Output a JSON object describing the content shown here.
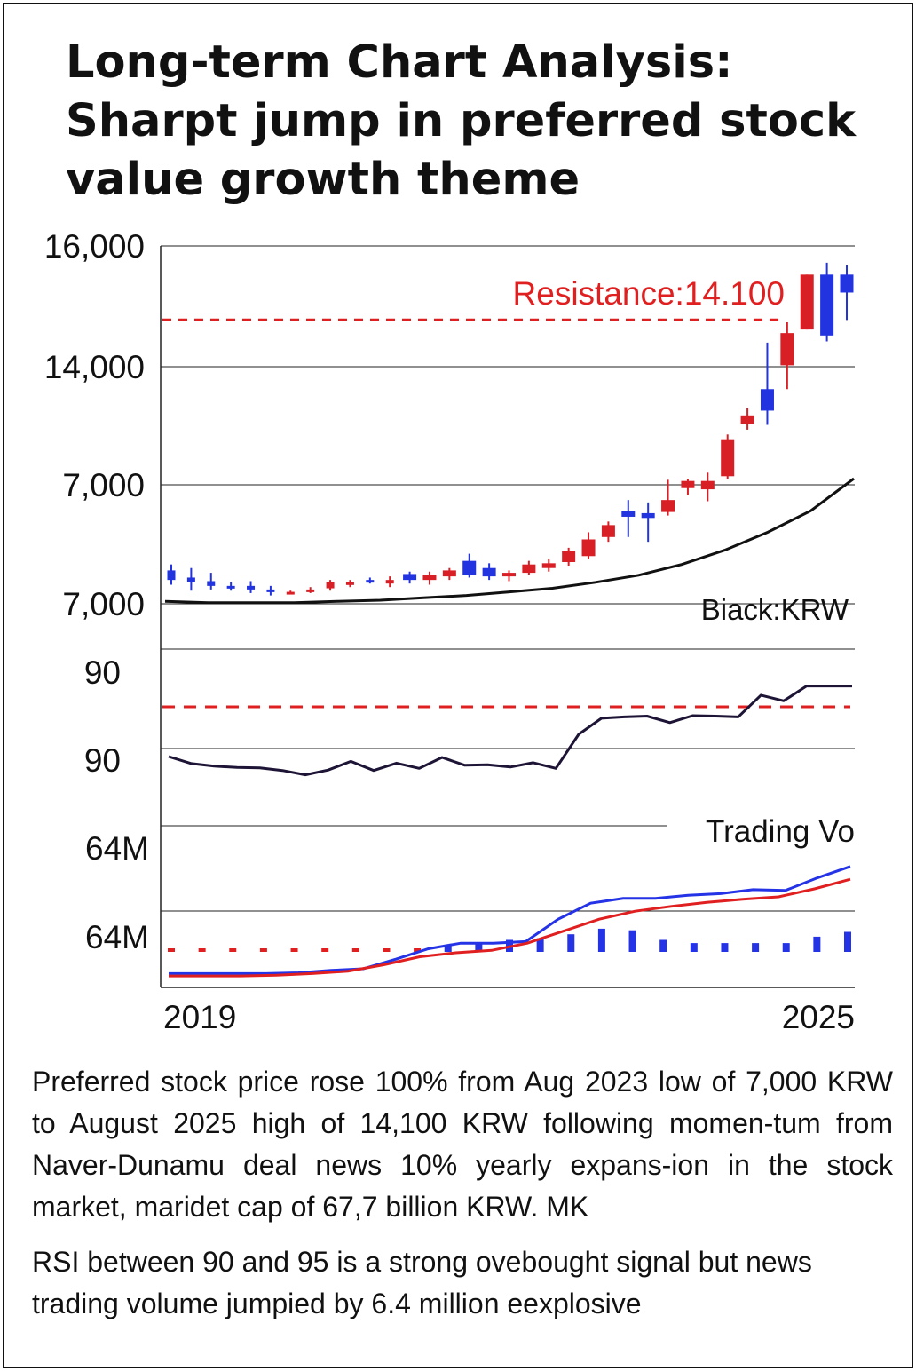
{
  "title": [
    "Long-term Chart Analysis:",
    "Sharpt jump in preferred stock",
    "value growth theme"
  ],
  "colors": {
    "up": "#d91f26",
    "down": "#2233e0",
    "line": "#111111",
    "rsi": "#1e1536",
    "grid": "#222222",
    "red": "#e02020",
    "blue": "#2533e6"
  },
  "chart_data": [
    {
      "type": "candlestick",
      "title": "Price",
      "y_tick_labels": [
        "16,000",
        "14,000",
        "7,000",
        "7,000"
      ],
      "x_labels": [
        "2019",
        "2025"
      ],
      "annotation": "Resistance:14.100",
      "resistance_level": 14.1,
      "legend_label": "Biack:KRW",
      "scale_note": "y values expressed in chart index units: 0 = lowest gridline, 3 = top gridline",
      "candles": [
        {
          "o": 0.28,
          "c": 0.2,
          "h": 0.33,
          "l": 0.16,
          "color": "down"
        },
        {
          "o": 0.22,
          "c": 0.18,
          "h": 0.3,
          "l": 0.11,
          "color": "down"
        },
        {
          "o": 0.19,
          "c": 0.15,
          "h": 0.26,
          "l": 0.12,
          "color": "down"
        },
        {
          "o": 0.15,
          "c": 0.13,
          "h": 0.18,
          "l": 0.11,
          "color": "down"
        },
        {
          "o": 0.15,
          "c": 0.12,
          "h": 0.19,
          "l": 0.09,
          "color": "down"
        },
        {
          "o": 0.12,
          "c": 0.11,
          "h": 0.15,
          "l": 0.07,
          "color": "down"
        },
        {
          "o": 0.09,
          "c": 0.1,
          "h": 0.11,
          "l": 0.08,
          "color": "up"
        },
        {
          "o": 0.11,
          "c": 0.12,
          "h": 0.14,
          "l": 0.09,
          "color": "up"
        },
        {
          "o": 0.13,
          "c": 0.18,
          "h": 0.2,
          "l": 0.11,
          "color": "up"
        },
        {
          "o": 0.16,
          "c": 0.18,
          "h": 0.2,
          "l": 0.14,
          "color": "up"
        },
        {
          "o": 0.2,
          "c": 0.18,
          "h": 0.22,
          "l": 0.17,
          "color": "down"
        },
        {
          "o": 0.17,
          "c": 0.2,
          "h": 0.23,
          "l": 0.14,
          "color": "up"
        },
        {
          "o": 0.25,
          "c": 0.2,
          "h": 0.27,
          "l": 0.17,
          "color": "down"
        },
        {
          "o": 0.2,
          "c": 0.24,
          "h": 0.27,
          "l": 0.16,
          "color": "up"
        },
        {
          "o": 0.23,
          "c": 0.28,
          "h": 0.3,
          "l": 0.2,
          "color": "up"
        },
        {
          "o": 0.36,
          "c": 0.24,
          "h": 0.42,
          "l": 0.22,
          "color": "down"
        },
        {
          "o": 0.3,
          "c": 0.23,
          "h": 0.34,
          "l": 0.2,
          "color": "down"
        },
        {
          "o": 0.23,
          "c": 0.26,
          "h": 0.28,
          "l": 0.19,
          "color": "up"
        },
        {
          "o": 0.26,
          "c": 0.33,
          "h": 0.36,
          "l": 0.24,
          "color": "up"
        },
        {
          "o": 0.3,
          "c": 0.34,
          "h": 0.38,
          "l": 0.27,
          "color": "up"
        },
        {
          "o": 0.35,
          "c": 0.44,
          "h": 0.47,
          "l": 0.32,
          "color": "up"
        },
        {
          "o": 0.4,
          "c": 0.54,
          "h": 0.6,
          "l": 0.38,
          "color": "up"
        },
        {
          "o": 0.56,
          "c": 0.66,
          "h": 0.69,
          "l": 0.52,
          "color": "up"
        },
        {
          "o": 0.78,
          "c": 0.73,
          "h": 0.87,
          "l": 0.56,
          "color": "down"
        },
        {
          "o": 0.76,
          "c": 0.72,
          "h": 0.85,
          "l": 0.52,
          "color": "down"
        },
        {
          "o": 0.77,
          "c": 0.87,
          "h": 1.04,
          "l": 0.74,
          "color": "up"
        },
        {
          "o": 0.97,
          "c": 1.03,
          "h": 1.05,
          "l": 0.91,
          "color": "up"
        },
        {
          "o": 0.96,
          "c": 1.03,
          "h": 1.1,
          "l": 0.86,
          "color": "up"
        },
        {
          "o": 1.07,
          "c": 1.38,
          "h": 1.42,
          "l": 1.05,
          "color": "up"
        },
        {
          "o": 1.51,
          "c": 1.58,
          "h": 1.64,
          "l": 1.46,
          "color": "up"
        },
        {
          "o": 1.8,
          "c": 1.62,
          "h": 2.19,
          "l": 1.5,
          "color": "down"
        },
        {
          "o": 2.0,
          "c": 2.27,
          "h": 2.36,
          "l": 1.8,
          "color": "up"
        },
        {
          "o": 2.3,
          "c": 2.76,
          "h": 2.76,
          "l": 2.3,
          "color": "up"
        },
        {
          "o": 2.76,
          "c": 2.25,
          "h": 2.86,
          "l": 2.2,
          "color": "down"
        },
        {
          "o": 2.76,
          "c": 2.61,
          "h": 2.84,
          "l": 2.38,
          "color": "down"
        }
      ],
      "moving_average": [
        0.02,
        0.01,
        0.01,
        0.01,
        0.02,
        0.03,
        0.05,
        0.07,
        0.1,
        0.13,
        0.18,
        0.24,
        0.33,
        0.45,
        0.6,
        0.78,
        1.05
      ]
    },
    {
      "type": "line",
      "title": "RSI",
      "y_tick_labels": [
        "90",
        "90"
      ],
      "reference_line": "dashed red overbought level",
      "values": [
        1.02,
        0.86,
        0.8,
        0.77,
        0.76,
        0.7,
        0.6,
        0.71,
        0.91,
        0.7,
        0.87,
        0.75,
        1.0,
        0.82,
        0.83,
        0.78,
        0.88,
        0.75,
        1.53,
        1.9,
        1.93,
        1.95,
        1.8,
        1.96,
        1.95,
        1.93,
        2.43,
        2.3,
        2.64,
        2.64,
        2.64
      ]
    },
    {
      "type": "line",
      "title": "Trading Volume",
      "y_tick_labels": [
        "64M",
        "64M"
      ],
      "legend_label": "Trading Vo",
      "series": [
        {
          "name": "blue",
          "values": [
            0.04,
            0.04,
            0.04,
            0.04,
            0.05,
            0.08,
            0.1,
            0.22,
            0.35,
            0.42,
            0.42,
            0.44,
            0.72,
            0.92,
            0.98,
            0.98,
            1.02,
            1.04,
            1.09,
            1.08,
            1.24,
            1.38
          ]
        },
        {
          "name": "red",
          "values": [
            0.01,
            0.01,
            0.01,
            0.02,
            0.04,
            0.07,
            0.15,
            0.25,
            0.3,
            0.33,
            0.42,
            0.57,
            0.72,
            0.82,
            0.88,
            0.93,
            0.97,
            1.0,
            1.1,
            1.22
          ]
        }
      ],
      "dotted_series": [
        0.33,
        0.33,
        0.33,
        0.33,
        0.33,
        0.35,
        0.37,
        0.38,
        0.4,
        0.42,
        0.43,
        0.48,
        0.5,
        0.55,
        0.62,
        0.6,
        0.48,
        0.44,
        0.44,
        0.44,
        0.44,
        0.52,
        0.58
      ]
    }
  ],
  "description": [
    "Preferred stock price rose 100% from Aug 2023 low of 7,000 KRW to August 2025 high of 14,100 KRW following momen-tum from Naver-Dunamu deal news 10% yearly expans-ion in the stock market, maridet cap of 67,7 billion KRW. MK",
    "RSI between 90 and 95 is a strong ovebought signal but news trading volume jumpied by 6.4 million eexplosive"
  ]
}
